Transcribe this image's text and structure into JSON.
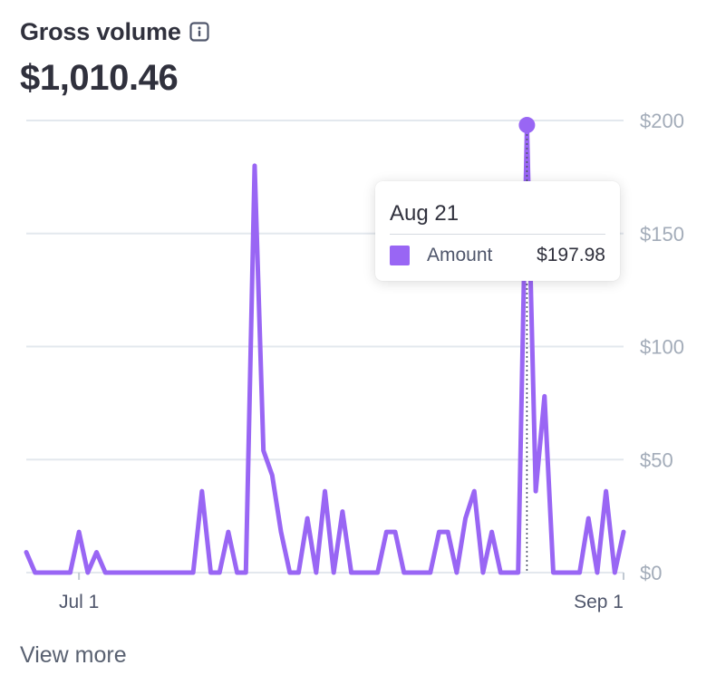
{
  "header": {
    "title": "Gross volume",
    "info_icon": "info-icon",
    "total": "$1,010.46"
  },
  "tooltip": {
    "date": "Aug 21",
    "series": "Amount",
    "value": "$197.98"
  },
  "footer": {
    "link": "View more"
  },
  "colors": {
    "line": "#9966f4",
    "grid": "#e3e8ee",
    "axis_text": "#a3acb9"
  },
  "chart_data": {
    "type": "line",
    "title": "Gross volume",
    "xlabel": "",
    "ylabel": "",
    "y_tick_labels": [
      "$0",
      "$50",
      "$100",
      "$150",
      "$200"
    ],
    "y_ticks": [
      0,
      50,
      100,
      150,
      200
    ],
    "ylim": [
      0,
      200
    ],
    "x_tick_labels": [
      "Jul 1",
      "Sep 1"
    ],
    "x_tick_dates": [
      "2024-07-01",
      "2024-09-01"
    ],
    "xlim": [
      "2024-06-25",
      "2024-09-01"
    ],
    "grid": true,
    "legend": "none",
    "highlight": {
      "date": "2024-08-21",
      "value": 197.98
    },
    "series": [
      {
        "name": "Amount",
        "color": "#9966f4",
        "points": [
          [
            "2024-06-25",
            9
          ],
          [
            "2024-06-26",
            0
          ],
          [
            "2024-06-27",
            0
          ],
          [
            "2024-06-28",
            0
          ],
          [
            "2024-06-29",
            0
          ],
          [
            "2024-06-30",
            0
          ],
          [
            "2024-07-01",
            18
          ],
          [
            "2024-07-02",
            0
          ],
          [
            "2024-07-03",
            9
          ],
          [
            "2024-07-04",
            0
          ],
          [
            "2024-07-05",
            0
          ],
          [
            "2024-07-06",
            0
          ],
          [
            "2024-07-07",
            0
          ],
          [
            "2024-07-08",
            0
          ],
          [
            "2024-07-09",
            0
          ],
          [
            "2024-07-10",
            0
          ],
          [
            "2024-07-11",
            0
          ],
          [
            "2024-07-12",
            0
          ],
          [
            "2024-07-13",
            0
          ],
          [
            "2024-07-14",
            0
          ],
          [
            "2024-07-15",
            36
          ],
          [
            "2024-07-16",
            0
          ],
          [
            "2024-07-17",
            0
          ],
          [
            "2024-07-18",
            18
          ],
          [
            "2024-07-19",
            0
          ],
          [
            "2024-07-20",
            0
          ],
          [
            "2024-07-21",
            180
          ],
          [
            "2024-07-22",
            54
          ],
          [
            "2024-07-23",
            43
          ],
          [
            "2024-07-24",
            18
          ],
          [
            "2024-07-25",
            0
          ],
          [
            "2024-07-26",
            0
          ],
          [
            "2024-07-27",
            24
          ],
          [
            "2024-07-28",
            0
          ],
          [
            "2024-07-29",
            36
          ],
          [
            "2024-07-30",
            0
          ],
          [
            "2024-07-31",
            27
          ],
          [
            "2024-08-01",
            0
          ],
          [
            "2024-08-02",
            0
          ],
          [
            "2024-08-03",
            0
          ],
          [
            "2024-08-04",
            0
          ],
          [
            "2024-08-05",
            18
          ],
          [
            "2024-08-06",
            18
          ],
          [
            "2024-08-07",
            0
          ],
          [
            "2024-08-08",
            0
          ],
          [
            "2024-08-09",
            0
          ],
          [
            "2024-08-10",
            0
          ],
          [
            "2024-08-11",
            18
          ],
          [
            "2024-08-12",
            18
          ],
          [
            "2024-08-13",
            0
          ],
          [
            "2024-08-14",
            24
          ],
          [
            "2024-08-15",
            36
          ],
          [
            "2024-08-16",
            0
          ],
          [
            "2024-08-17",
            18
          ],
          [
            "2024-08-18",
            0
          ],
          [
            "2024-08-19",
            0
          ],
          [
            "2024-08-20",
            0
          ],
          [
            "2024-08-21",
            197.98
          ],
          [
            "2024-08-22",
            36
          ],
          [
            "2024-08-23",
            78
          ],
          [
            "2024-08-24",
            0
          ],
          [
            "2024-08-25",
            0
          ],
          [
            "2024-08-26",
            0
          ],
          [
            "2024-08-27",
            0
          ],
          [
            "2024-08-28",
            24
          ],
          [
            "2024-08-29",
            0
          ],
          [
            "2024-08-30",
            36
          ],
          [
            "2024-08-31",
            0
          ],
          [
            "2024-09-01",
            18
          ]
        ]
      }
    ]
  }
}
